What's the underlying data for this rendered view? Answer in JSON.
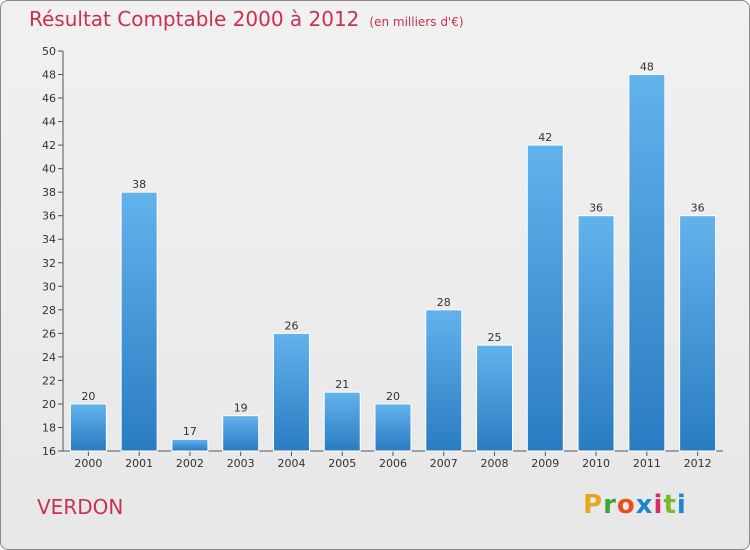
{
  "title": "Résultat Comptable 2000 à 2012",
  "subtitle": "(en milliers d'€)",
  "commune": "VERDON",
  "brand": {
    "letters": [
      "P",
      "r",
      "o",
      "x",
      "i",
      "t",
      "i"
    ],
    "colors": [
      "#e8a524",
      "#3fa535",
      "#e84e1b",
      "#1f87c9",
      "#d92b6a",
      "#7cb82f",
      "#1f87c9"
    ]
  },
  "colors": {
    "title": "#c8314f",
    "bar_top": "#62b2ec",
    "bar_bottom": "#2a7cc2",
    "axis": "#555555"
  },
  "chart_data": {
    "type": "bar",
    "title": "Résultat Comptable 2000 à 2012",
    "unit": "(en milliers d'€)",
    "categories": [
      "2000",
      "2001",
      "2002",
      "2003",
      "2004",
      "2005",
      "2006",
      "2007",
      "2008",
      "2009",
      "2010",
      "2011",
      "2012"
    ],
    "values": [
      20,
      38,
      17,
      19,
      26,
      21,
      20,
      28,
      25,
      42,
      36,
      48,
      36
    ],
    "ylim": [
      16,
      50
    ],
    "yticks": [
      16,
      18,
      20,
      22,
      24,
      26,
      28,
      30,
      32,
      34,
      36,
      38,
      40,
      42,
      44,
      46,
      48,
      50
    ],
    "grid": false,
    "legend": "none"
  }
}
